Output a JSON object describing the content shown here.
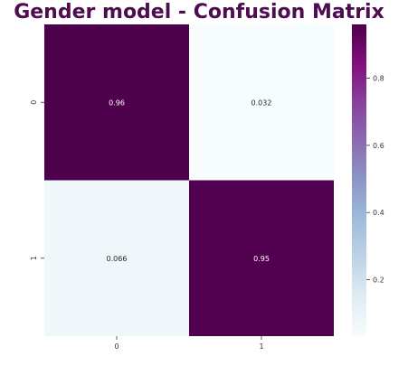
{
  "chart_data": {
    "type": "heatmap",
    "title": "Gender model - Confusion Matrix",
    "x_categories": [
      "0",
      "1"
    ],
    "y_categories": [
      "0",
      "1"
    ],
    "values": [
      [
        0.96,
        0.032
      ],
      [
        0.066,
        0.95
      ]
    ],
    "value_labels": [
      [
        "0.96",
        "0.032"
      ],
      [
        "0.066",
        "0.95"
      ]
    ],
    "colorbar": {
      "range": [
        0.032,
        0.96
      ],
      "ticks": [
        0.2,
        0.4,
        0.6,
        0.8
      ],
      "tick_labels": [
        "0.2",
        "0.4",
        "0.6",
        "0.8"
      ]
    },
    "colormap": [
      "#f7fcfd",
      "#e0ecf4",
      "#bfd3e6",
      "#9ebcda",
      "#8c96c6",
      "#8c6bb1",
      "#88419d",
      "#810f7c",
      "#4d004b"
    ],
    "xlabel": "",
    "ylabel": "",
    "grid": false
  }
}
